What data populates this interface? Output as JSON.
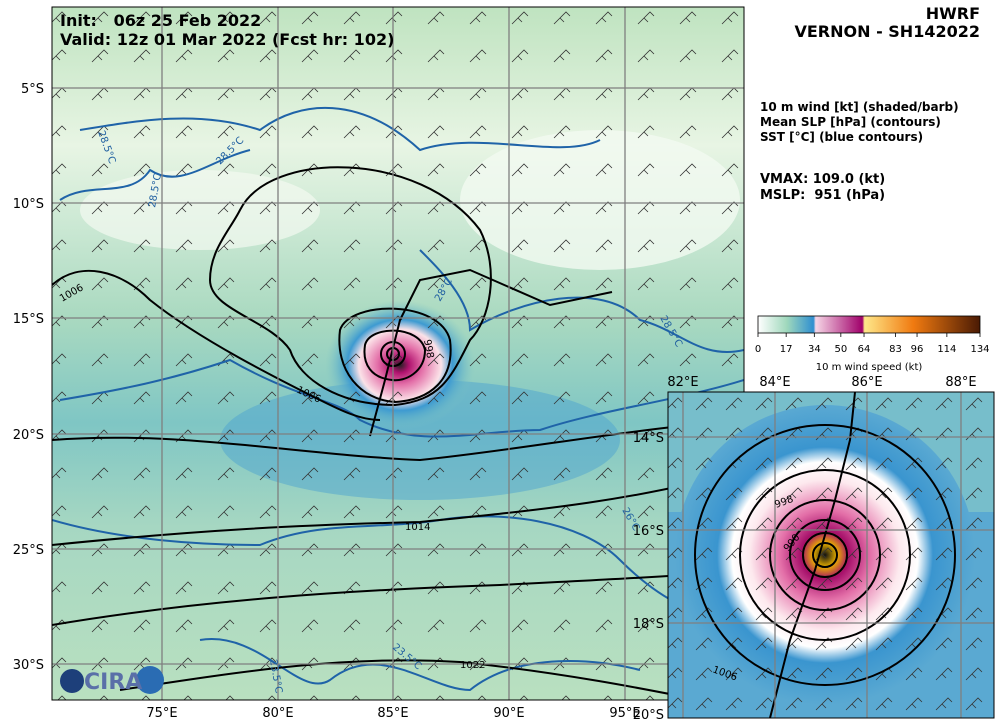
{
  "header": {
    "init": "Init:   06z 25 Feb 2022",
    "valid": "Valid: 12z 01 Mar 2022 (Fcst hr: 102)",
    "model": "HWRF",
    "storm": "VERNON - SH142022"
  },
  "legend": {
    "lines": [
      "10 m wind [kt] (shaded/barb)",
      "Mean SLP [hPa] (contours)",
      "SST [°C] (blue contours)"
    ],
    "vmax": "VMAX: 109.0 (kt)",
    "mslp": "MSLP:  951 (hPa)"
  },
  "colorbar": {
    "ticks": [
      0,
      17,
      34,
      50,
      64,
      83,
      96,
      114,
      134
    ],
    "label": "10 m wind speed (kt)"
  },
  "map": {
    "lat_labels": [
      "5°S",
      "10°S",
      "15°S",
      "20°S",
      "25°S",
      "30°S"
    ],
    "lon_labels": [
      "75°E",
      "80°E",
      "85°E",
      "90°E",
      "95°E"
    ],
    "contour_labels": [
      "1006",
      "1006",
      "998",
      "1014",
      "1022"
    ],
    "sst_labels": [
      "28.5°C",
      "28.5°C",
      "28.5°C",
      "28°C",
      "28.5°C",
      "26°C",
      "23.5°C",
      "23.5°C"
    ]
  },
  "inset": {
    "lat_labels": [
      "14°S",
      "16°S",
      "18°S",
      "20°S"
    ],
    "lon_labels": [
      "82°E",
      "84°E",
      "86°E",
      "88°E"
    ],
    "contour_labels": [
      "998",
      "990",
      "1006"
    ]
  },
  "logo": "CIRA"
}
